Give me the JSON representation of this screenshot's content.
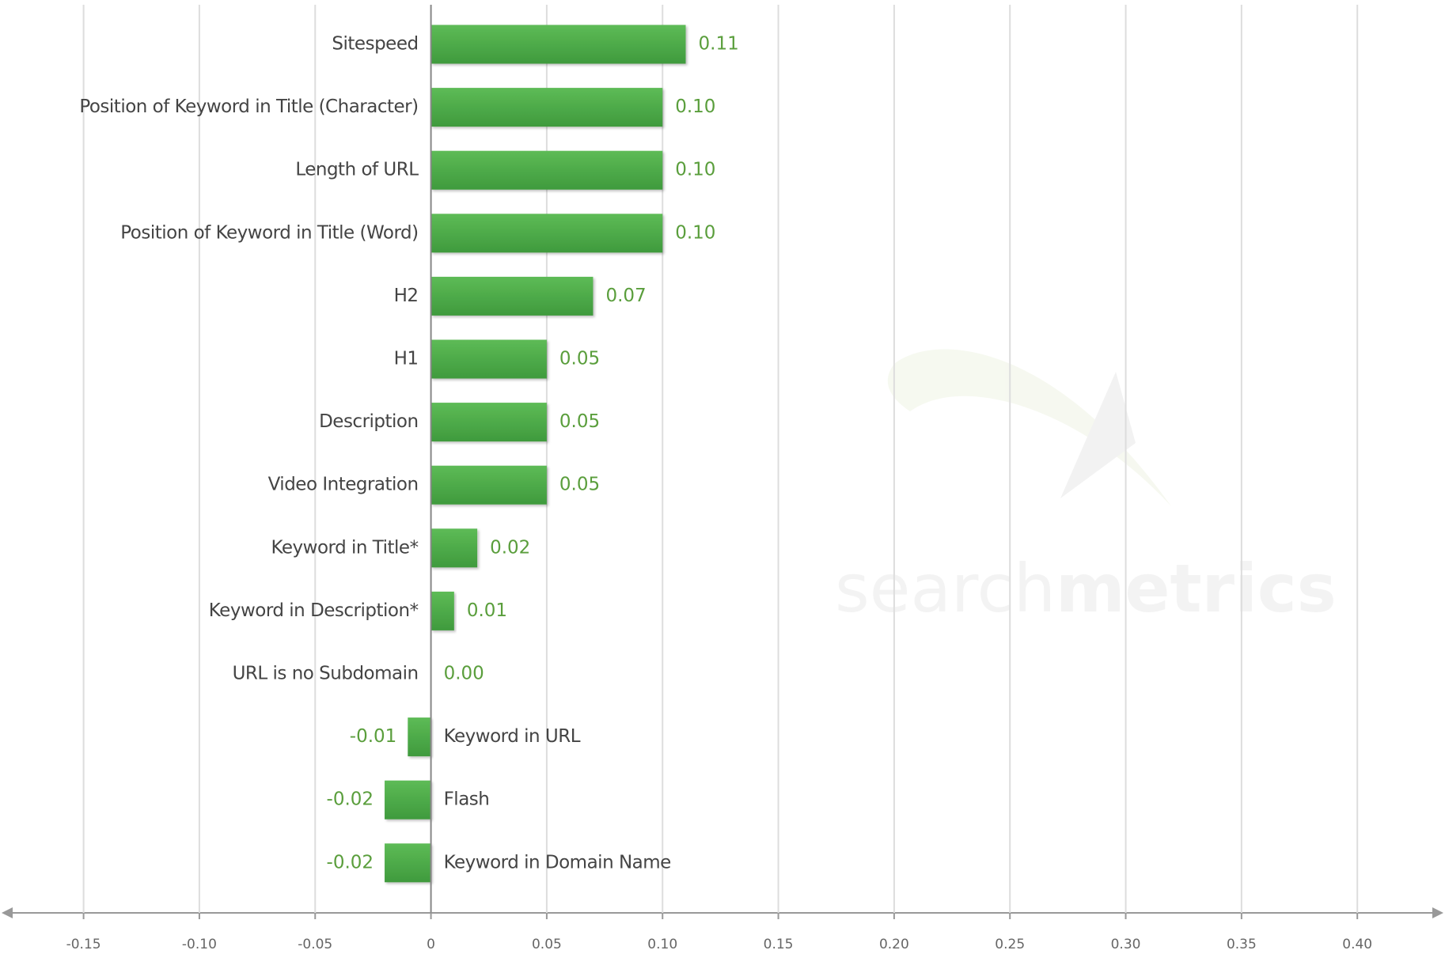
{
  "chart_data": {
    "type": "hbar",
    "categories": [
      "Sitespeed",
      "Position of Keyword in Title (Character)",
      "Length of URL",
      "Position of Keyword in Title (Word)",
      "H2",
      "H1",
      "Description",
      "Video Integration",
      "Keyword in Title*",
      "Keyword in Description*",
      "URL is no Subdomain",
      "Keyword in URL",
      "Flash",
      "Keyword in Domain Name"
    ],
    "values": [
      0.11,
      0.1,
      0.1,
      0.1,
      0.07,
      0.05,
      0.05,
      0.05,
      0.02,
      0.01,
      0,
      -0.01,
      -0.02,
      -0.02
    ],
    "value_labels": [
      "0.11",
      "0.10",
      "0.10",
      "0.10",
      "0.07",
      "0.05",
      "0.05",
      "0.05",
      "0.02",
      "0.01",
      "0.00",
      "-0.01",
      "-0.02",
      "-0.02"
    ],
    "color": "#4caa48",
    "label_color": "#5a9e3c",
    "xlim": [
      -0.15,
      0.4
    ],
    "xticks": [
      -0.15,
      {
        "value": -0.1,
        "label": "-0.10"
      },
      -0.05,
      0,
      0.05,
      {
        "value": 0.1,
        "label": "0.10"
      },
      0.15,
      {
        "value": 0.2,
        "label": "0.20"
      },
      0.25,
      {
        "value": 0.3,
        "label": "0.30"
      },
      0.35,
      {
        "value": 0.4,
        "label": "0.40"
      }
    ],
    "grid": true,
    "watermark": {
      "light": "search",
      "bold": "metrics"
    }
  }
}
